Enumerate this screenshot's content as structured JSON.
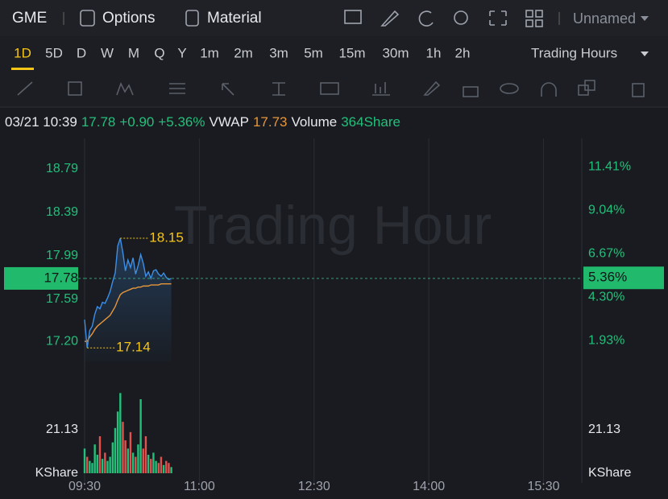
{
  "toolbar": {
    "symbol": "GME",
    "options": "Options",
    "material": "Material",
    "layout_name": "Unnamed"
  },
  "timeframes": {
    "items": [
      "1D",
      "5D",
      "D",
      "W",
      "M",
      "Q",
      "Y",
      "1m",
      "2m",
      "3m",
      "5m",
      "15m",
      "30m",
      "1h",
      "2h"
    ],
    "active": 0,
    "session": "Trading Hours"
  },
  "info": {
    "time": "03/21 10:39",
    "price": "17.78",
    "change": "+0.90",
    "change_pct": "+5.36%",
    "vwap_label": "VWAP",
    "vwap": "17.73",
    "volume_label": "Volume",
    "volume": "364Share"
  },
  "watermark": "Trading Hour",
  "chart_data": {
    "type": "line",
    "x": [
      "09:30",
      "09:32",
      "09:34",
      "09:36",
      "09:38",
      "09:40",
      "09:42",
      "09:44",
      "09:46",
      "09:48",
      "09:50",
      "09:52",
      "09:54",
      "09:56",
      "09:58",
      "10:00",
      "10:02",
      "10:04",
      "10:06",
      "10:08",
      "10:10",
      "10:12",
      "10:14",
      "10:16",
      "10:18",
      "10:20",
      "10:22",
      "10:24",
      "10:26",
      "10:28",
      "10:30",
      "10:32",
      "10:34",
      "10:36",
      "10:38"
    ],
    "xlim": [
      "09:30",
      "16:00"
    ],
    "xticks": [
      "09:30",
      "11:00",
      "12:30",
      "14:00",
      "15:30"
    ],
    "series": [
      {
        "name": "Price",
        "color": "#3d8fe6",
        "values": [
          17.4,
          17.14,
          17.3,
          17.34,
          17.45,
          17.52,
          17.5,
          17.56,
          17.55,
          17.6,
          17.66,
          17.75,
          17.83,
          18.08,
          18.15,
          18.02,
          17.85,
          17.95,
          17.88,
          17.97,
          17.82,
          17.9,
          18.0,
          17.92,
          17.8,
          17.84,
          17.78,
          17.85,
          17.86,
          17.82,
          17.8,
          17.83,
          17.79,
          17.77,
          17.78
        ]
      },
      {
        "name": "VWAP",
        "color": "#e8963a",
        "values": [
          17.2,
          17.2,
          17.24,
          17.27,
          17.31,
          17.34,
          17.36,
          17.38,
          17.4,
          17.42,
          17.44,
          17.48,
          17.52,
          17.58,
          17.63,
          17.65,
          17.66,
          17.67,
          17.68,
          17.69,
          17.69,
          17.7,
          17.7,
          17.71,
          17.71,
          17.71,
          17.72,
          17.72,
          17.72,
          17.72,
          17.73,
          17.73,
          17.73,
          17.73,
          17.73
        ]
      }
    ],
    "ylim": [
      16.86,
      19.07
    ],
    "yticks": [
      {
        "value": 18.79,
        "label": "18.79"
      },
      {
        "value": 18.39,
        "label": "18.39"
      },
      {
        "value": 17.99,
        "label": "17.99"
      },
      {
        "value": 17.59,
        "label": "17.59"
      },
      {
        "value": 17.2,
        "label": "17.20"
      }
    ],
    "y2lim": [
      -0.12,
      12.97
    ],
    "y2ticks": [
      {
        "value": 11.41,
        "label": "11.41%"
      },
      {
        "value": 9.04,
        "label": "9.04%"
      },
      {
        "value": 6.67,
        "label": "6.67%"
      },
      {
        "value": 4.3,
        "label": "4.30%"
      },
      {
        "value": 1.93,
        "label": "1.93%"
      }
    ],
    "last_price": 17.78,
    "last_price_label": "17.78",
    "last_pct": 5.36,
    "last_pct_label": "5.36%",
    "high_label": "18.15",
    "low_label": "17.14",
    "volume": {
      "values": [
        12,
        8,
        6,
        5,
        14,
        9,
        18,
        7,
        10,
        6,
        8,
        15,
        22,
        30,
        39,
        25,
        16,
        12,
        20,
        10,
        8,
        14,
        36,
        12,
        18,
        9,
        7,
        10,
        6,
        5,
        8,
        4,
        6,
        5,
        3
      ],
      "ylim": [
        0,
        42.26
      ],
      "yticks": [
        {
          "value": 0,
          "label": "KShare"
        },
        21.13
      ],
      "up_color": "#22c07a",
      "down_color": "#e0524e"
    },
    "grid": true
  }
}
